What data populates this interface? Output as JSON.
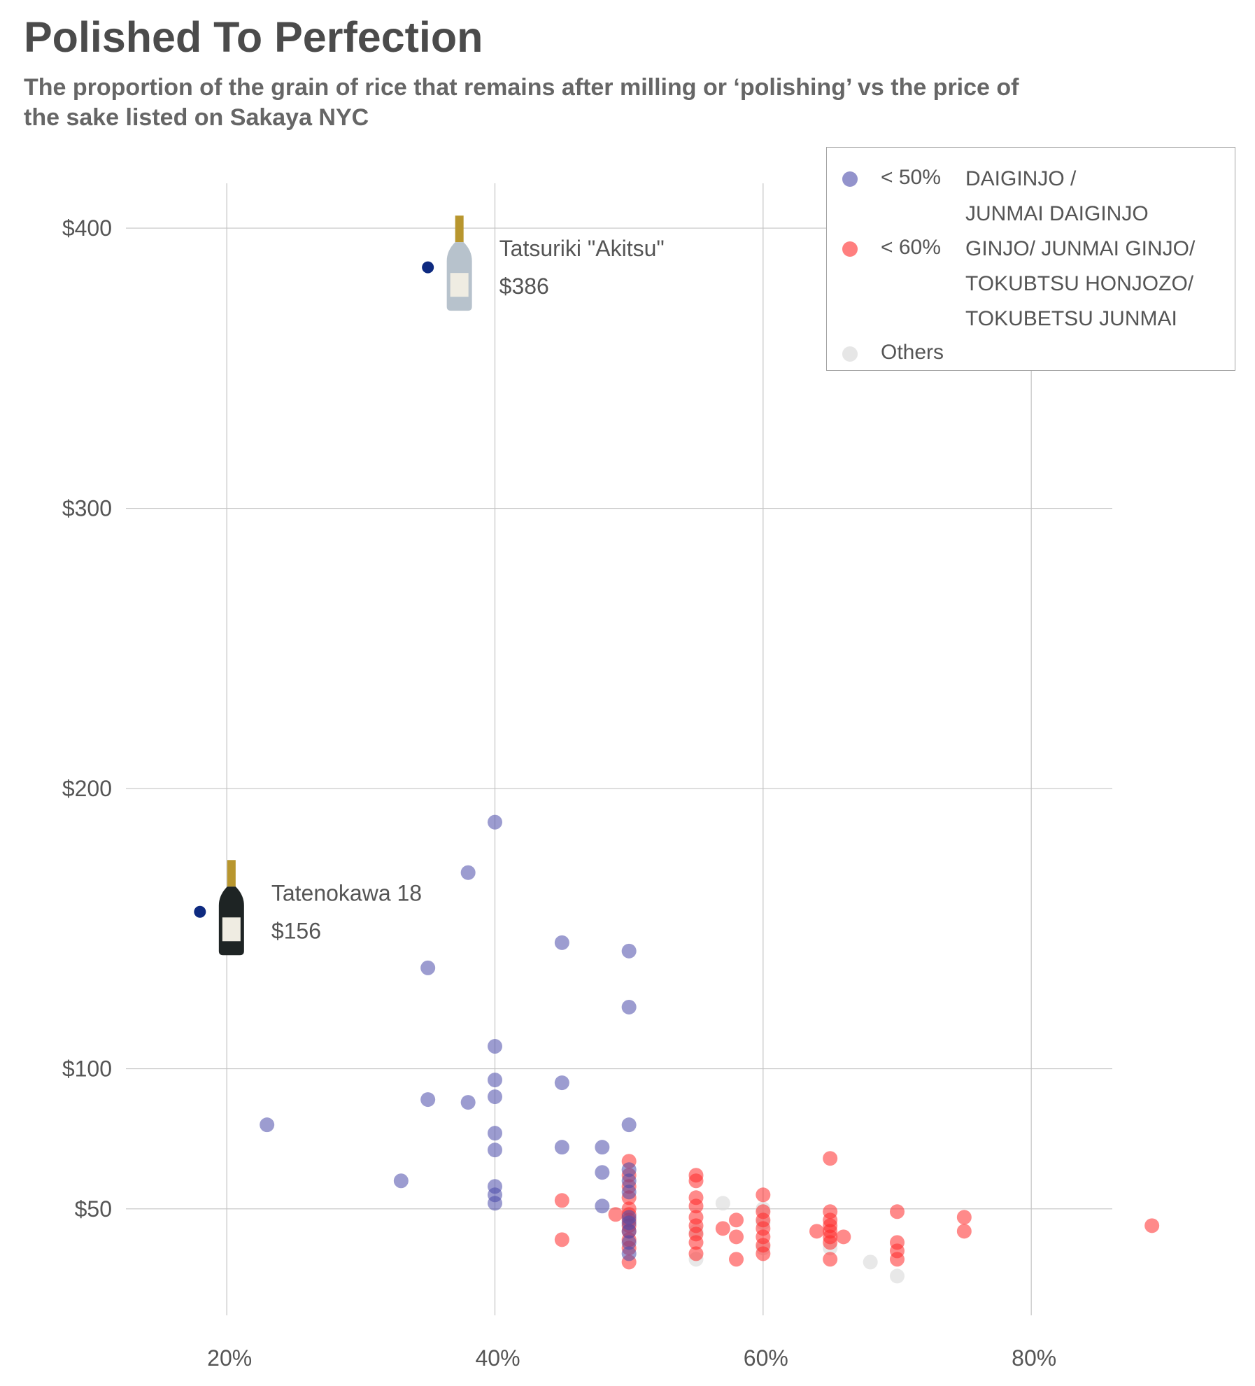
{
  "title": "Polished To Perfection",
  "subtitle": "The proportion of the grain of rice that remains after milling or ‘polishing’ vs the price of the sake listed on Sakaya NYC",
  "legend": {
    "items": [
      {
        "prefix": "< 50%",
        "lines": [
          "DAIGINJO /",
          "JUNMAI DAIGINJO"
        ],
        "color": "#4b4baa"
      },
      {
        "prefix": "< 60%",
        "lines": [
          "GINJO/ JUNMAI GINJO/",
          "TOKUBTSU HONJOZO/",
          "TOKUBETSU JUNMAI"
        ],
        "color": "#ff2a2a"
      },
      {
        "prefix": "",
        "lines": [
          "Others"
        ],
        "color": "#dcdcdc"
      }
    ]
  },
  "chart_data": {
    "type": "scatter",
    "title": "Polished To Perfection",
    "subtitle": "The proportion of the grain of rice that remains after milling or ‘polishing’ vs the price of the sake listed on Sakaya NYC",
    "xlabel": "",
    "ylabel": "",
    "xlim": [
      0.13,
      0.91
    ],
    "ylim": [
      7,
      416
    ],
    "x_ticks": [
      {
        "value": 0.2,
        "label": "20%"
      },
      {
        "value": 0.4,
        "label": "40%"
      },
      {
        "value": 0.6,
        "label": "60%"
      },
      {
        "value": 0.8,
        "label": "80%"
      }
    ],
    "y_ticks": [
      {
        "value": 50,
        "label": "$50"
      },
      {
        "value": 100,
        "label": "$100"
      },
      {
        "value": 200,
        "label": "$200"
      },
      {
        "value": 300,
        "label": "$300"
      },
      {
        "value": 400,
        "label": "$400"
      }
    ],
    "grid": true,
    "legend_position": "top-right",
    "series": [
      {
        "name": "DAIGINJO / JUNMAI DAIGINJO",
        "color": "#4b4baa",
        "points": [
          [
            0.23,
            80
          ],
          [
            0.33,
            60
          ],
          [
            0.35,
            136
          ],
          [
            0.35,
            89
          ],
          [
            0.38,
            170
          ],
          [
            0.38,
            88
          ],
          [
            0.4,
            188
          ],
          [
            0.4,
            108
          ],
          [
            0.4,
            96
          ],
          [
            0.4,
            90
          ],
          [
            0.4,
            77
          ],
          [
            0.4,
            71
          ],
          [
            0.4,
            58
          ],
          [
            0.4,
            55
          ],
          [
            0.4,
            52
          ],
          [
            0.45,
            145
          ],
          [
            0.45,
            95
          ],
          [
            0.45,
            72
          ],
          [
            0.48,
            72
          ],
          [
            0.48,
            63
          ],
          [
            0.48,
            51
          ],
          [
            0.5,
            142
          ],
          [
            0.5,
            122
          ],
          [
            0.5,
            80
          ],
          [
            0.5,
            64
          ],
          [
            0.5,
            60
          ],
          [
            0.5,
            56
          ],
          [
            0.5,
            47
          ],
          [
            0.5,
            45
          ],
          [
            0.5,
            42
          ],
          [
            0.5,
            38
          ],
          [
            0.5,
            34
          ]
        ]
      },
      {
        "name": "GINJO/ JUNMAI GINJO/ TOKUBTSU HONJOZO/ TOKUBETSU JUNMAI",
        "color": "#ff2a2a",
        "points": [
          [
            0.45,
            53
          ],
          [
            0.45,
            39
          ],
          [
            0.49,
            48
          ],
          [
            0.5,
            67
          ],
          [
            0.5,
            62
          ],
          [
            0.5,
            58
          ],
          [
            0.5,
            54
          ],
          [
            0.5,
            50
          ],
          [
            0.5,
            48
          ],
          [
            0.5,
            46
          ],
          [
            0.5,
            44
          ],
          [
            0.5,
            42
          ],
          [
            0.5,
            39
          ],
          [
            0.5,
            36
          ],
          [
            0.5,
            31
          ],
          [
            0.55,
            62
          ],
          [
            0.55,
            60
          ],
          [
            0.55,
            54
          ],
          [
            0.55,
            51
          ],
          [
            0.55,
            47
          ],
          [
            0.55,
            44
          ],
          [
            0.55,
            41
          ],
          [
            0.55,
            38
          ],
          [
            0.55,
            34
          ],
          [
            0.57,
            43
          ],
          [
            0.58,
            46
          ],
          [
            0.58,
            40
          ],
          [
            0.58,
            32
          ],
          [
            0.6,
            55
          ],
          [
            0.6,
            49
          ],
          [
            0.6,
            46
          ],
          [
            0.6,
            43
          ],
          [
            0.6,
            40
          ],
          [
            0.6,
            37
          ],
          [
            0.6,
            34
          ],
          [
            0.64,
            42
          ],
          [
            0.65,
            68
          ],
          [
            0.65,
            49
          ],
          [
            0.65,
            46
          ],
          [
            0.65,
            44
          ],
          [
            0.65,
            42
          ],
          [
            0.65,
            40
          ],
          [
            0.65,
            38
          ],
          [
            0.65,
            32
          ],
          [
            0.66,
            40
          ],
          [
            0.7,
            49
          ],
          [
            0.7,
            38
          ],
          [
            0.7,
            35
          ],
          [
            0.7,
            32
          ],
          [
            0.75,
            47
          ],
          [
            0.75,
            42
          ],
          [
            0.89,
            44
          ]
        ]
      },
      {
        "name": "Others",
        "color": "#dcdcdc",
        "points": [
          [
            0.55,
            32
          ],
          [
            0.55,
            42
          ],
          [
            0.57,
            52
          ],
          [
            0.6,
            50
          ],
          [
            0.6,
            45
          ],
          [
            0.6,
            36
          ],
          [
            0.65,
            36
          ],
          [
            0.68,
            31
          ],
          [
            0.7,
            26
          ]
        ]
      }
    ],
    "highlighted": [
      {
        "x": 0.18,
        "y": 156,
        "name": "Tatenokawa 18",
        "price": "$156",
        "color": "#0e2a80"
      },
      {
        "x": 0.35,
        "y": 386,
        "name": "Tatsuriki \"Akitsu\"",
        "price": "$386",
        "color": "#0e2a80"
      }
    ]
  }
}
